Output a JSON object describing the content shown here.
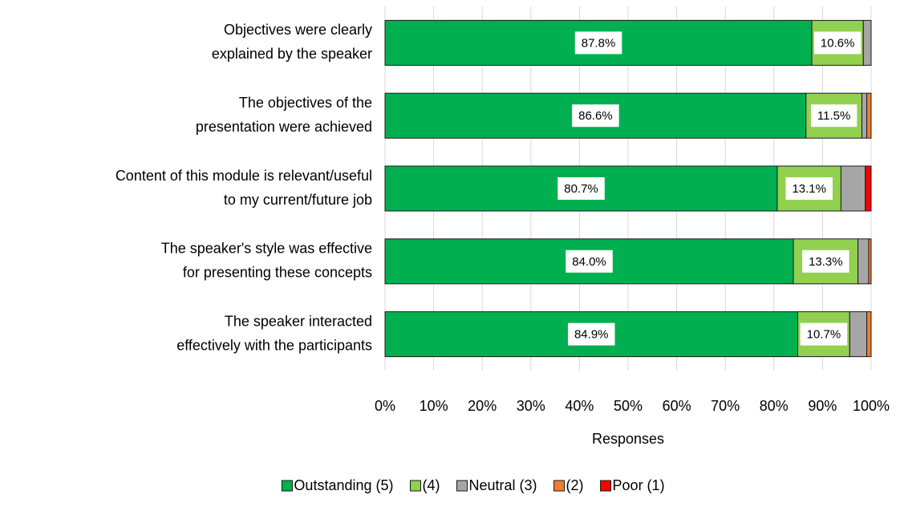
{
  "chart_data": {
    "type": "stacked_barh",
    "categories": [
      [
        "Objectives were clearly",
        "explained by the speaker"
      ],
      [
        "The objectives of the",
        "presentation were achieved"
      ],
      [
        "Content of this module is relevant/useful",
        "to my current/future job"
      ],
      [
        "The speaker's style was effective",
        "for presenting these concepts"
      ],
      [
        "The speaker interacted",
        "effectively with the participants"
      ]
    ],
    "series": [
      {
        "name": "Outstanding (5)",
        "color": "#00b050",
        "values": [
          87.8,
          86.6,
          80.7,
          84.0,
          84.9
        ],
        "value_labels": [
          "87.8%",
          "86.6%",
          "80.7%",
          "84.0%",
          "84.9%"
        ]
      },
      {
        "name": "(4)",
        "color": "#92d050",
        "values": [
          10.6,
          11.5,
          13.1,
          13.3,
          10.7
        ],
        "value_labels": [
          "10.6%",
          "11.5%",
          "13.1%",
          "13.3%",
          "10.7%"
        ]
      },
      {
        "name": "Neutral (3)",
        "color": "#a6a6a6",
        "values": [
          1.6,
          1.0,
          5.0,
          2.2,
          3.5
        ]
      },
      {
        "name": "(2)",
        "color": "#ed7d31",
        "values": [
          0,
          0.9,
          0,
          0.5,
          0.9
        ]
      },
      {
        "name": "Poor (1)",
        "color": "#ff0000",
        "values": [
          0,
          0,
          1.2,
          0,
          0
        ]
      }
    ],
    "x_label": "Responses",
    "xlim": [
      0,
      100
    ],
    "xticks": [
      {
        "value": 0,
        "label": "0%"
      },
      {
        "value": 10,
        "label": "10%"
      },
      {
        "value": 20,
        "label": "20%"
      },
      {
        "value": 30,
        "label": "30%"
      },
      {
        "value": 40,
        "label": "40%"
      },
      {
        "value": 50,
        "label": "50%"
      },
      {
        "value": 60,
        "label": "60%"
      },
      {
        "value": 70,
        "label": "70%"
      },
      {
        "value": 80,
        "label": "80%"
      },
      {
        "value": 90,
        "label": "90%"
      },
      {
        "value": 100,
        "label": "100%"
      }
    ],
    "grid": true,
    "legend": "bottom"
  }
}
